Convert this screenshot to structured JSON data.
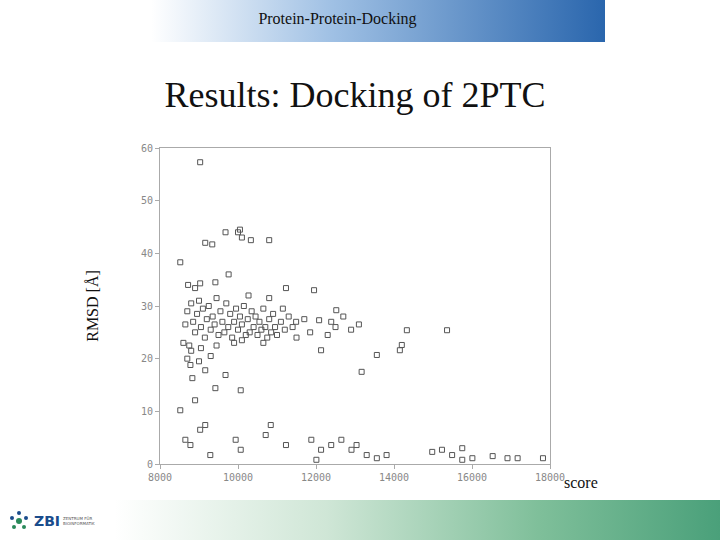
{
  "slide": {
    "header": "Protein-Protein-Docking",
    "logo_text": "ZBI",
    "logo_subtext": "ZENTRUM FÜR BIOINFORMATIK"
  },
  "chart_data": {
    "type": "scatter",
    "title": "Results: Docking of 2PTC",
    "x_label": "score",
    "y_label": "RMSD [Å]",
    "marker": "square-open",
    "color": "#555555",
    "grid": false,
    "xlim": [
      8000,
      18000
    ],
    "xticks": [
      8000,
      10000,
      12000,
      14000,
      16000,
      18000
    ],
    "ylim": [
      0,
      60
    ],
    "yticks": [
      0,
      10,
      20,
      30,
      40,
      50,
      60
    ],
    "x": [
      9030,
      10000,
      10050,
      10100,
      9160,
      9340,
      9680,
      10330,
      10800,
      8520,
      9760,
      8720,
      8900,
      9030,
      9420,
      10270,
      10800,
      11230,
      11950,
      12080,
      12390,
      12520,
      11490,
      12130,
      13170,
      13560,
      14150,
      14330,
      15360,
      14200,
      8780,
      8830,
      9160,
      9420,
      10070,
      9680,
      8520,
      8900,
      8650,
      8780,
      9030,
      9160,
      9290,
      9940,
      10070,
      10710,
      10840,
      11230,
      11880,
      12010,
      12130,
      12390,
      12650,
      12910,
      13040,
      13300,
      13560,
      13810,
      14980,
      15230,
      15490,
      15750,
      16010,
      16530,
      16910,
      17170,
      17820,
      15750,
      8700,
      8800,
      8850,
      8900,
      8950,
      9000,
      9050,
      9100,
      9150,
      9200,
      9250,
      9300,
      9350,
      9400,
      9450,
      9500,
      9550,
      9600,
      9650,
      9700,
      9750,
      9800,
      9850,
      9900,
      9950,
      10000,
      10050,
      10100,
      10150,
      10200,
      10250,
      10300,
      10350,
      10400,
      10450,
      10500,
      10550,
      10600,
      10650,
      10700,
      10750,
      10800,
      10850,
      10900,
      10950,
      11000,
      11100,
      11200,
      11300,
      11400,
      8600,
      8650,
      8750,
      9050,
      9450,
      9900,
      10100,
      10650,
      11150,
      11500,
      11700,
      11850,
      12300,
      12500,
      12700,
      12900,
      13100,
      8700,
      8800,
      9000,
      9300
    ],
    "values": [
      57.3,
      44,
      44.5,
      43,
      42,
      41.7,
      44,
      42.5,
      42.5,
      38.3,
      36,
      34,
      33.4,
      34.3,
      34.5,
      32,
      31.5,
      33.4,
      33,
      27.3,
      27,
      29.2,
      27,
      21.6,
      17.5,
      20.7,
      21.6,
      25.4,
      25.4,
      22.6,
      18.8,
      16.3,
      17.8,
      14.4,
      14,
      16.9,
      10.2,
      12.1,
      4.6,
      3.6,
      6.5,
      7.4,
      1.7,
      4.6,
      2.7,
      5.5,
      7.4,
      3.6,
      4.6,
      0.8,
      2.7,
      3.6,
      4.6,
      2.7,
      3.6,
      1.7,
      1.1,
      1.7,
      2.3,
      2.7,
      1.7,
      3,
      1.1,
      1.5,
      1.1,
      1.1,
      1.1,
      0.8,
      29,
      30.5,
      27,
      25,
      28.5,
      31,
      26,
      29.5,
      24,
      27.5,
      30,
      25.5,
      28,
      26.5,
      31.5,
      24.5,
      29,
      27,
      25,
      30.5,
      26,
      28.5,
      24,
      27,
      29.5,
      25.5,
      28,
      26.5,
      30,
      24.5,
      27.5,
      25,
      29,
      26,
      28,
      24.5,
      27,
      25.5,
      29.5,
      26,
      24,
      27.5,
      25,
      28.5,
      26,
      24.5,
      27,
      25.5,
      28,
      26,
      23,
      26.5,
      22.5,
      22,
      22.5,
      23,
      23.5,
      23,
      29.5,
      24,
      27.5,
      25,
      24.5,
      26,
      28,
      25.5,
      26.5,
      20,
      21.5,
      19.5,
      20.5
    ]
  }
}
